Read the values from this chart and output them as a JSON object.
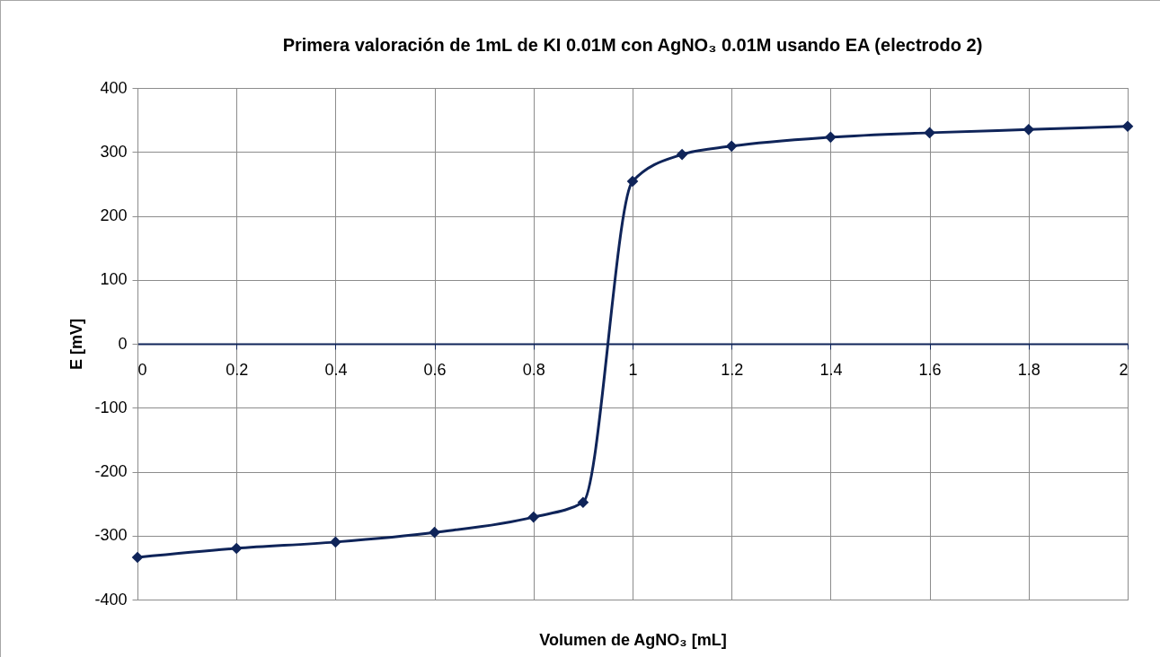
{
  "chart_data": {
    "type": "line",
    "title": "Primera valoración de 1mL de KI 0.01M con AgNO₃ 0.01M usando EA (electrodo 2)",
    "xlabel": "Volumen de AgNO₃ [mL]",
    "ylabel": "E [mV]",
    "x": [
      0,
      0.2,
      0.4,
      0.6,
      0.8,
      0.9,
      1.0,
      1.1,
      1.2,
      1.4,
      1.6,
      1.8,
      2.0
    ],
    "series": [
      {
        "color": "#0f2459",
        "values": [
          -334,
          -320,
          -310,
          -295,
          -271,
          -248,
          254,
          296,
          309,
          323,
          330,
          335,
          340
        ]
      }
    ],
    "xlim": [
      0,
      2
    ],
    "xticks": [
      0,
      0.2,
      0.4,
      0.6,
      0.8,
      1,
      1.2,
      1.4,
      1.6,
      1.8,
      2
    ],
    "ylim": [
      -400,
      400
    ],
    "yticks": [
      -400,
      -300,
      -200,
      -100,
      0,
      100,
      200,
      300,
      400
    ],
    "grid": true,
    "legend": false,
    "marker": "diamond",
    "line_style": "solid"
  }
}
